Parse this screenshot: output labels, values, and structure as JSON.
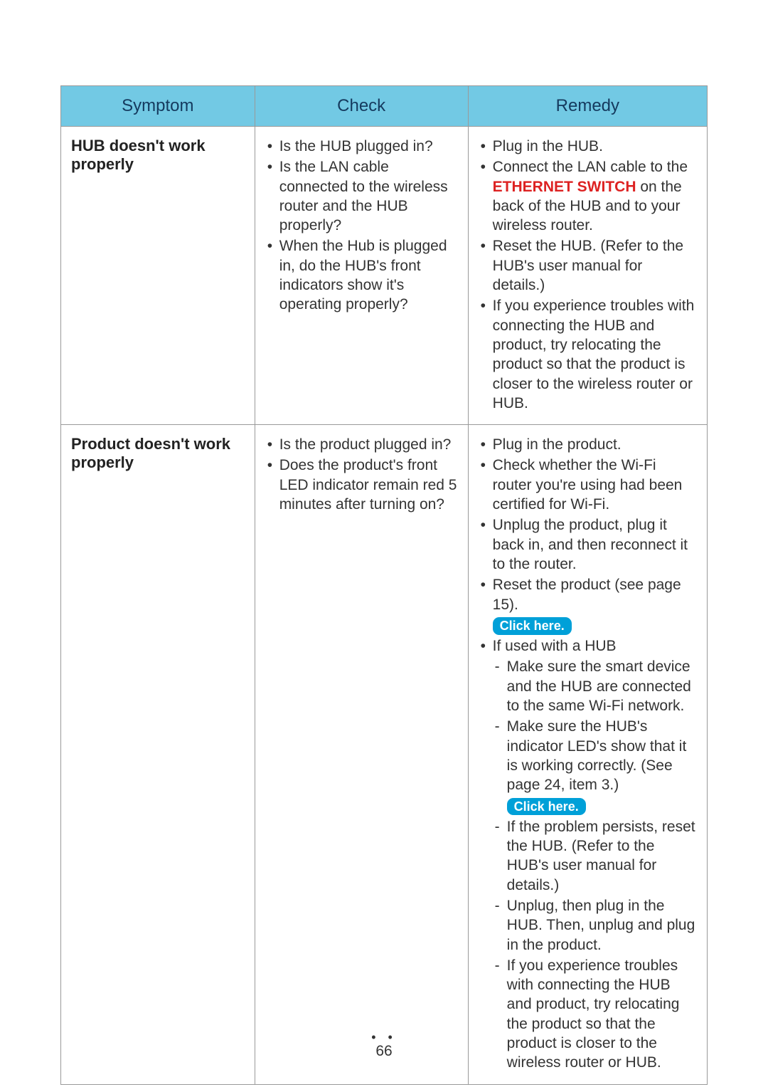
{
  "table": {
    "headers": {
      "symptom": "Symptom",
      "check": "Check",
      "remedy": "Remedy"
    },
    "header_bg": "#72c9e4",
    "header_color": "#153a5e",
    "border_color": "#999999",
    "text_color": "#333333",
    "font_size_body_pt": 16,
    "font_size_header_pt": 18,
    "columns_width_pct": [
      30,
      33,
      37
    ]
  },
  "rows": [
    {
      "symptom": "HUB doesn't work properly",
      "check": [
        "Is the HUB plugged in?",
        "Is the LAN cable connected to the wireless router and the HUB properly?",
        "When the Hub is plugged in, do the HUB's front indicators show it's operating properly?"
      ],
      "remedy_pre": "Plug in the HUB.",
      "remedy_line2_a": "Connect the LAN cable to the ",
      "remedy_line2_highlight": "ETHERNET SWITCH",
      "remedy_line2_b": " on the back of the HUB and to your wireless router.",
      "remedy_rest": [
        "Reset the HUB. (Refer to the HUB's user manual for details.)",
        "If you experience troubles with connecting the HUB and product, try relocating the product so that the product is closer to the wireless router or HUB."
      ]
    },
    {
      "symptom": "Product doesn't work properly",
      "check": [
        "Is the product plugged in?",
        "Does the product's front LED indicator remain red 5 minutes after turning on?"
      ],
      "remedy2": {
        "b1": "Plug in the product.",
        "b2": "Check whether the Wi-Fi router you're using had been certified for Wi-Fi.",
        "b3": "Unplug the product, plug it back in, and then reconnect it to the router.",
        "b4": "Reset the product (see page 15).",
        "pill1": "Click here.",
        "b5": "If used with a HUB",
        "d1": "Make sure the smart device and the HUB are connected to the same Wi-Fi network.",
        "d2": "Make sure the HUB's indicator LED's show that it is working correctly. (See page 24, item 3.)",
        "pill2": "Click here.",
        "d3": "If the problem persists, reset the HUB. (Refer to the HUB's user manual for details.)",
        "d4": "Unplug, then plug in the HUB. Then, unplug and plug in the product.",
        "d5": "If you experience troubles with connecting the HUB and product, try relocating the product so that the product is closer to the wireless router or HUB."
      }
    }
  ],
  "accent_red": "#dd2222",
  "pill_bg": "#00a0d8",
  "pill_color": "#ffffff",
  "page_number": "66",
  "page_dots": "• •"
}
